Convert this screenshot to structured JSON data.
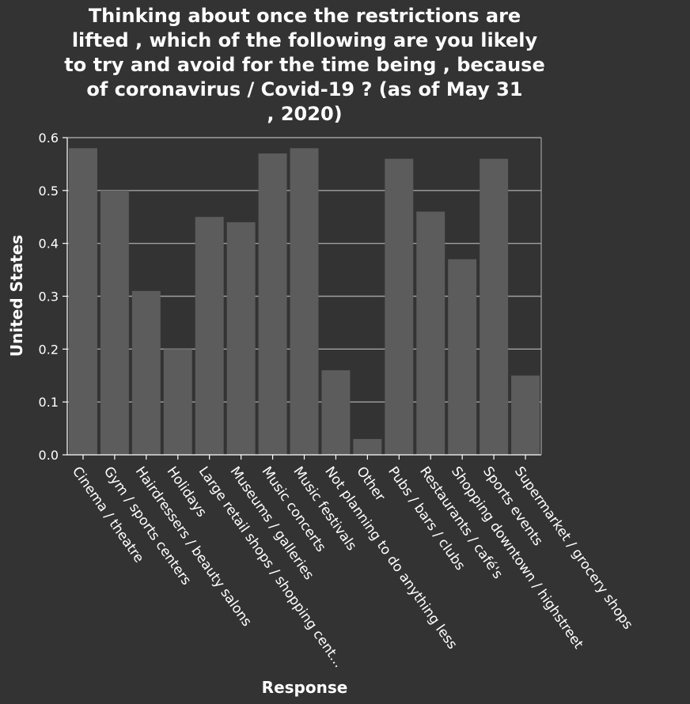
{
  "chart_data": {
    "type": "bar",
    "title_lines": [
      "Thinking about once the restrictions are",
      "lifted , which of the following are you likely",
      "to try and avoid for the time being , because",
      "of coronavirus / Covid-19 ? (as of May 31",
      ", 2020)"
    ],
    "xlabel": "Response",
    "ylabel": "United States",
    "ylim": [
      0,
      0.6
    ],
    "yticks": [
      "0.0",
      "0.1",
      "0.2",
      "0.3",
      "0.4",
      "0.5",
      "0.6"
    ],
    "categories": [
      "Cinema / theatre",
      "Gym / sports centers",
      "Hairdressers / beauty salons",
      "Holidays",
      "Large retail shops / shopping cent...",
      "Museums / galleries",
      "Music concerts",
      "Music festivals",
      "Not planning to do anything less",
      "Other",
      "Pubs / bars / clubs",
      "Restaurants / café's",
      "Shopping downtown / highstreet",
      "Sports events",
      "Supermarket / grocery shops"
    ],
    "values": [
      0.58,
      0.5,
      0.31,
      0.2,
      0.45,
      0.44,
      0.57,
      0.58,
      0.16,
      0.03,
      0.56,
      0.46,
      0.37,
      0.56,
      0.15
    ],
    "grid": true,
    "colors": {
      "background": "#333333",
      "bar": "#5c5c5c",
      "grid": "#a0a0a0",
      "axis": "#ffffff",
      "text": "#ffffff"
    }
  }
}
